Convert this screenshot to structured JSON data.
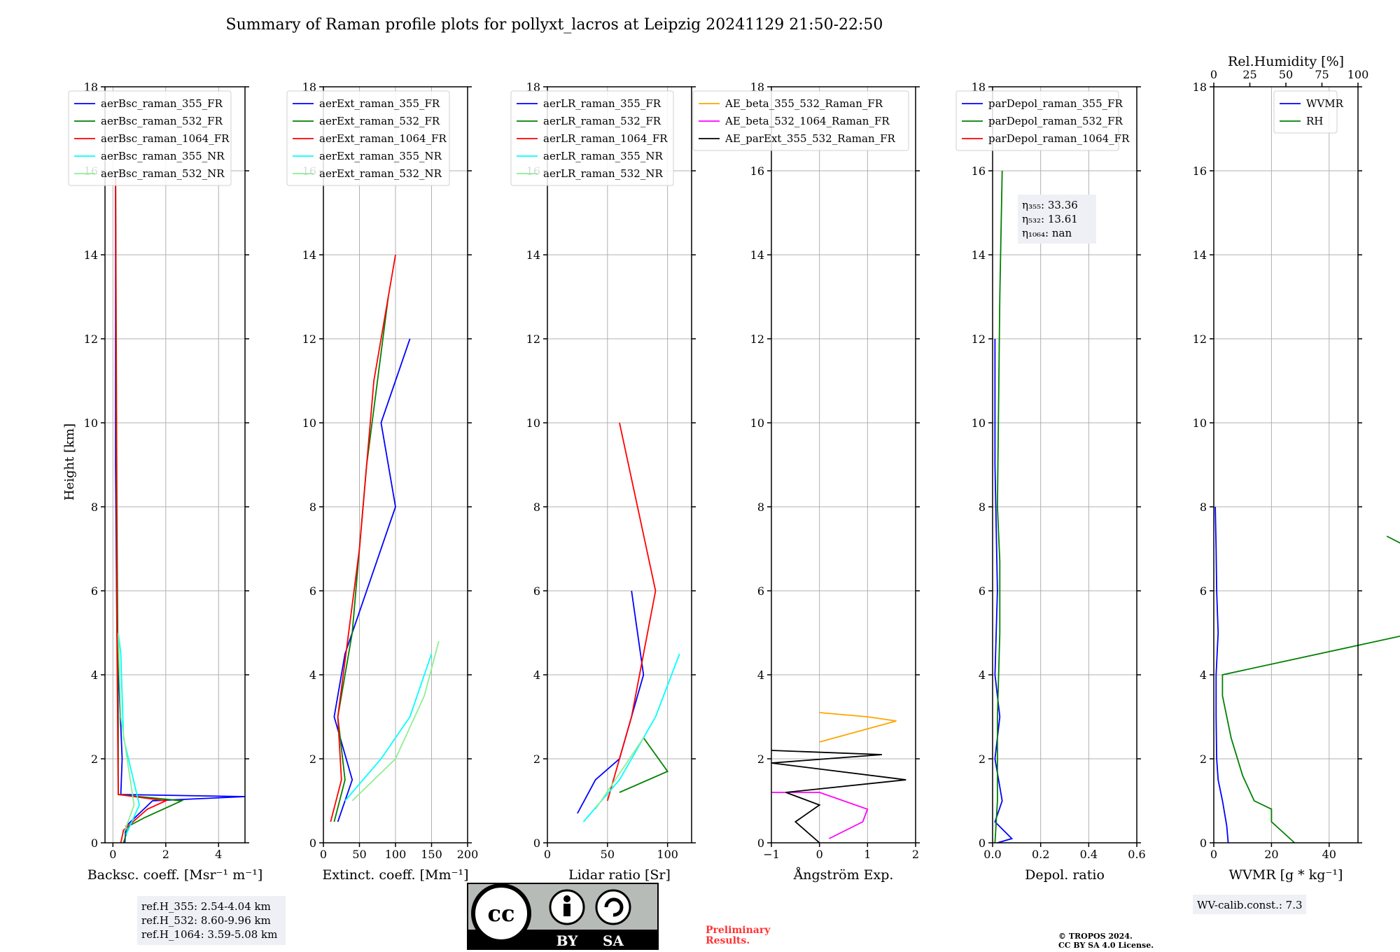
{
  "title": "Summary of Raman profile plots for pollyxt_lacros at Leipzig 20241129 21:50-22:50",
  "ylabel": "Height [km]",
  "y_ticks": [
    "0",
    "2",
    "4",
    "6",
    "8",
    "10",
    "12",
    "14",
    "16",
    "18"
  ],
  "colors": {
    "blue": "#0000ff",
    "green": "#008000",
    "red": "#ff0000",
    "cyan": "#00ffff",
    "lightgreen": "#90ee90",
    "orange": "#ffa500",
    "magenta": "#ff00ff",
    "black": "#000000"
  },
  "chart_data": [
    {
      "type": "line",
      "xlabel": "Backsc. coeff. [Msr⁻¹ m⁻¹]",
      "xlim": [
        -0.3,
        5
      ],
      "ylim": [
        0,
        18
      ],
      "x_ticks": [
        "0",
        "2",
        "4"
      ],
      "legend": "top-left",
      "series": [
        {
          "name": "aerBsc_raman_355_FR",
          "color": "blue",
          "points": [
            [
              0.45,
              0
            ],
            [
              0.5,
              0.4
            ],
            [
              1.5,
              1.0
            ],
            [
              5,
              1.1
            ],
            [
              0.3,
              1.15
            ],
            [
              0.35,
              2.0
            ],
            [
              0.25,
              3.5
            ],
            [
              0.15,
              5
            ],
            [
              0.1,
              9
            ],
            [
              0.1,
              13.5
            ],
            [
              0.1,
              16
            ]
          ]
        },
        {
          "name": "aerBsc_raman_532_FR",
          "color": "green",
          "points": [
            [
              0.4,
              0
            ],
            [
              0.6,
              0.4
            ],
            [
              1.2,
              0.6
            ],
            [
              2.6,
              1.0
            ],
            [
              0.2,
              1.15
            ],
            [
              0.2,
              3
            ],
            [
              0.15,
              8
            ],
            [
              0.1,
              16
            ]
          ]
        },
        {
          "name": "aerBsc_raman_1064_FR",
          "color": "red",
          "points": [
            [
              0.3,
              0
            ],
            [
              0.4,
              0.3
            ],
            [
              1.3,
              0.8
            ],
            [
              2.0,
              1.0
            ],
            [
              0.2,
              1.15
            ],
            [
              0.15,
              5
            ],
            [
              0.1,
              16
            ]
          ]
        },
        {
          "name": "aerBsc_raman_355_NR",
          "color": "cyan",
          "points": [
            [
              0.5,
              0.2
            ],
            [
              1.0,
              0.9
            ],
            [
              0.4,
              2.5
            ],
            [
              0.3,
              4.5
            ],
            [
              0.2,
              5
            ]
          ]
        },
        {
          "name": "aerBsc_raman_532_NR",
          "color": "lightgreen",
          "points": [
            [
              0.4,
              0.2
            ],
            [
              0.8,
              0.9
            ],
            [
              0.3,
              3
            ],
            [
              0.2,
              5
            ]
          ]
        }
      ],
      "annotation": [
        "ref.H_355: 2.54-4.04 km",
        "ref.H_532: 8.60-9.96 km",
        "ref.H_1064: 3.59-5.08 km"
      ]
    },
    {
      "type": "line",
      "xlabel": "Extinct. coeff. [Mm⁻¹]",
      "xlim": [
        0,
        200
      ],
      "ylim": [
        0,
        18
      ],
      "x_ticks": [
        "0",
        "50",
        "100",
        "150",
        "200"
      ],
      "legend": "top-left",
      "series": [
        {
          "name": "aerExt_raman_355_FR",
          "color": "blue",
          "points": [
            [
              20,
              0.5
            ],
            [
              40,
              1.5
            ],
            [
              15,
              3
            ],
            [
              30,
              4.5
            ],
            [
              60,
              6
            ],
            [
              100,
              8
            ],
            [
              80,
              10
            ],
            [
              120,
              12
            ]
          ]
        },
        {
          "name": "aerExt_raman_532_FR",
          "color": "green",
          "points": [
            [
              15,
              0.5
            ],
            [
              30,
              1.5
            ],
            [
              20,
              3
            ],
            [
              40,
              5
            ],
            [
              60,
              9
            ],
            [
              90,
              13
            ]
          ]
        },
        {
          "name": "aerExt_raman_1064_FR",
          "color": "red",
          "points": [
            [
              10,
              0.5
            ],
            [
              25,
              1.5
            ],
            [
              20,
              3
            ],
            [
              50,
              7
            ],
            [
              70,
              11
            ],
            [
              100,
              14
            ]
          ]
        },
        {
          "name": "aerExt_raman_355_NR",
          "color": "cyan",
          "points": [
            [
              30,
              1
            ],
            [
              80,
              2
            ],
            [
              120,
              3
            ],
            [
              150,
              4.5
            ]
          ]
        },
        {
          "name": "aerExt_raman_532_NR",
          "color": "lightgreen",
          "points": [
            [
              40,
              1
            ],
            [
              100,
              2
            ],
            [
              140,
              3.5
            ],
            [
              160,
              4.8
            ]
          ]
        }
      ]
    },
    {
      "type": "line",
      "xlabel": "Lidar ratio [Sr]",
      "xlim": [
        0,
        120
      ],
      "ylim": [
        0,
        18
      ],
      "x_ticks": [
        "0",
        "50",
        "100"
      ],
      "legend": "top-left",
      "series": [
        {
          "name": "aerLR_raman_355_FR",
          "color": "blue",
          "points": [
            [
              25,
              0.7
            ],
            [
              40,
              1.5
            ],
            [
              60,
              2
            ],
            [
              80,
              4
            ],
            [
              70,
              6
            ]
          ]
        },
        {
          "name": "aerLR_raman_532_FR",
          "color": "green",
          "points": [
            [
              60,
              1.2
            ],
            [
              100,
              1.7
            ],
            [
              80,
              2.5
            ]
          ]
        },
        {
          "name": "aerLR_raman_1064_FR",
          "color": "red",
          "points": [
            [
              50,
              1
            ],
            [
              70,
              3
            ],
            [
              90,
              6
            ],
            [
              60,
              10
            ]
          ]
        },
        {
          "name": "aerLR_raman_355_NR",
          "color": "cyan",
          "points": [
            [
              30,
              0.5
            ],
            [
              60,
              1.5
            ],
            [
              90,
              3
            ],
            [
              110,
              4.5
            ]
          ]
        },
        {
          "name": "aerLR_raman_532_NR",
          "color": "lightgreen",
          "points": [
            [
              40,
              0.8
            ],
            [
              80,
              2.5
            ]
          ]
        }
      ]
    },
    {
      "type": "line",
      "xlabel": "Ångström Exp.",
      "xlim": [
        -1,
        2
      ],
      "ylim": [
        0,
        18
      ],
      "x_ticks": [
        "−1",
        "0",
        "1",
        "2"
      ],
      "legend": "top-right",
      "series": [
        {
          "name": "AE_beta_355_532_Raman_FR",
          "color": "orange",
          "points": [
            [
              0,
              2.4
            ],
            [
              1.6,
              2.9
            ],
            [
              1.0,
              3.0
            ],
            [
              0.0,
              3.1
            ]
          ]
        },
        {
          "name": "AE_beta_532_1064_Raman_FR",
          "color": "magenta",
          "points": [
            [
              0.2,
              0.1
            ],
            [
              0.9,
              0.5
            ],
            [
              1.0,
              0.8
            ],
            [
              0.0,
              1.2
            ],
            [
              -1,
              1.2
            ]
          ]
        },
        {
          "name": "AE_parExt_355_532_Raman_FR",
          "color": "black",
          "points": [
            [
              0,
              0
            ],
            [
              -0.5,
              0.5
            ],
            [
              0,
              0.9
            ],
            [
              -0.7,
              1.2
            ],
            [
              1.8,
              1.5
            ],
            [
              -1,
              1.9
            ],
            [
              1.3,
              2.1
            ],
            [
              -1,
              2.2
            ]
          ]
        }
      ]
    },
    {
      "type": "line",
      "xlabel": "Depol. ratio",
      "xlim": [
        0,
        0.6
      ],
      "ylim": [
        0,
        18
      ],
      "x_ticks": [
        "0.0",
        "0.2",
        "0.4",
        "0.6"
      ],
      "legend": "top-left",
      "series": [
        {
          "name": "parDepol_raman_355_FR",
          "color": "blue",
          "points": [
            [
              0.02,
              0
            ],
            [
              0.08,
              0.1
            ],
            [
              0.01,
              0.5
            ],
            [
              0.04,
              1.0
            ],
            [
              0.01,
              2
            ],
            [
              0.03,
              3
            ],
            [
              0.01,
              4
            ],
            [
              0.02,
              6
            ],
            [
              0.01,
              9
            ],
            [
              0.01,
              12
            ]
          ]
        },
        {
          "name": "parDepol_raman_532_FR",
          "color": "green",
          "points": [
            [
              0.01,
              0
            ],
            [
              0.02,
              1
            ],
            [
              0.02,
              3
            ],
            [
              0.03,
              5
            ],
            [
              0.03,
              6.7
            ],
            [
              0.02,
              8
            ],
            [
              0.03,
              13
            ],
            [
              0.04,
              16
            ]
          ]
        },
        {
          "name": "parDepol_raman_1064_FR",
          "color": "red",
          "points": []
        }
      ],
      "annotation": [
        "η₃₅₅: 33.36",
        "η₅₃₂: 13.61",
        "η₁₀₆₄: nan"
      ]
    },
    {
      "type": "line",
      "xlabel": "WVMR [g * kg⁻¹]",
      "top_xlabel": "Rel.Humidity [%]",
      "xlim": [
        0,
        50
      ],
      "ylim": [
        0,
        18
      ],
      "x_ticks": [
        "0",
        "20",
        "40"
      ],
      "top_ticks": [
        "0",
        "25",
        "50",
        "75",
        "100"
      ],
      "legend": "top-right",
      "series": [
        {
          "name": "WVMR",
          "color": "blue",
          "points": [
            [
              5,
              0
            ],
            [
              4.5,
              0.4
            ],
            [
              3,
              1.0
            ],
            [
              1.5,
              1.5
            ],
            [
              1,
              2.0
            ],
            [
              0.8,
              3
            ],
            [
              0.8,
              4
            ],
            [
              1.5,
              5
            ],
            [
              1.0,
              6
            ],
            [
              0.8,
              7
            ],
            [
              0.5,
              8
            ]
          ]
        },
        {
          "name": "RH",
          "color": "green",
          "points": [
            [
              28,
              0
            ],
            [
              20,
              0.5
            ],
            [
              20,
              0.8
            ],
            [
              14,
              1.0
            ],
            [
              10,
              1.6
            ],
            [
              6,
              2.5
            ],
            [
              3,
              3.5
            ],
            [
              3,
              4.0
            ],
            [
              70,
              5.0
            ],
            [
              90,
              5.6
            ],
            [
              70,
              6.2
            ],
            [
              80,
              6.6
            ],
            [
              60,
              7.3
            ]
          ]
        }
      ],
      "annotation": "WV-calib.const.: 7.3"
    }
  ],
  "footer": {
    "cc_left": "BY",
    "cc_right": "SA",
    "cc_symbol": "cc",
    "preliminary_line1": "Preliminary",
    "preliminary_line2": "Results.",
    "copyright_line1": "© TROPOS 2024.",
    "copyright_line2": "CC BY SA 4.0 License."
  }
}
